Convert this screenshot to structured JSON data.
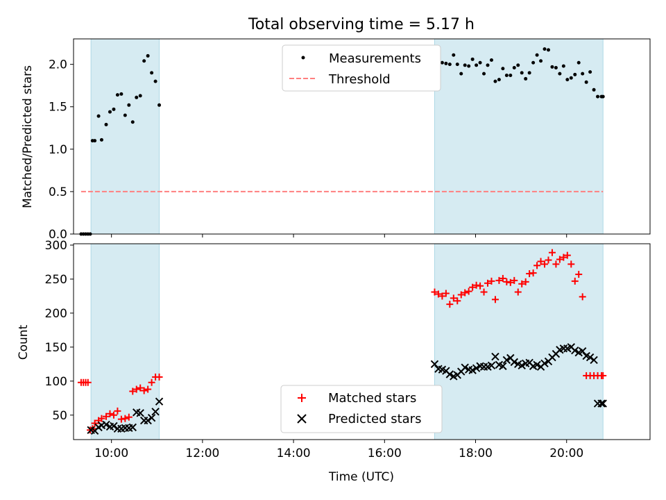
{
  "title": "Total observing time = 5.17 h",
  "xlabel": "Time (UTC)",
  "x_ticks": [
    "10:00",
    "12:00",
    "14:00",
    "16:00",
    "18:00",
    "20:00"
  ],
  "colors": {
    "shade": "#add8e6",
    "measurements": "#000000",
    "threshold": "#ff7f7f",
    "matched": "#ff0000",
    "predicted": "#000000"
  },
  "chart_data": [
    {
      "type": "scatter",
      "ylabel": "Matched/Predicted stars",
      "xlim": [
        "09:10",
        "21:50"
      ],
      "ylim": [
        0,
        2.3
      ],
      "y_ticks": [
        "0.0",
        "0.5",
        "1.0",
        "1.5",
        "2.0"
      ],
      "shaded_spans": [
        [
          "09:33",
          "11:03"
        ],
        [
          "17:06",
          "20:48"
        ]
      ],
      "legend": {
        "location": "upper center",
        "entries": [
          "Measurements",
          "Threshold"
        ]
      },
      "threshold": {
        "name": "Threshold",
        "y": 0.5,
        "x_range": [
          "09:20",
          "20:48"
        ],
        "style": "dashed"
      },
      "series": [
        {
          "name": "Measurements",
          "marker": "dot",
          "x": [
            "09:20",
            "09:23",
            "09:26",
            "09:29",
            "09:32",
            "09:35",
            "09:38",
            "09:43",
            "09:47",
            "09:53",
            "09:58",
            "10:03",
            "10:08",
            "10:13",
            "10:18",
            "10:23",
            "10:28",
            "10:33",
            "10:38",
            "10:43",
            "10:48",
            "10:53",
            "10:58",
            "11:03",
            "17:06",
            "17:11",
            "17:16",
            "17:21",
            "17:26",
            "17:31",
            "17:36",
            "17:41",
            "17:46",
            "17:51",
            "17:56",
            "18:01",
            "18:06",
            "18:11",
            "18:16",
            "18:21",
            "18:26",
            "18:31",
            "18:36",
            "18:41",
            "18:46",
            "18:51",
            "18:56",
            "19:01",
            "19:06",
            "19:11",
            "19:16",
            "19:21",
            "19:26",
            "19:31",
            "19:36",
            "19:41",
            "19:46",
            "19:51",
            "19:56",
            "20:01",
            "20:06",
            "20:11",
            "20:16",
            "20:21",
            "20:26",
            "20:31",
            "20:36",
            "20:41",
            "20:46",
            "20:48"
          ],
          "y": [
            0,
            0,
            0,
            0,
            0,
            1.1,
            1.1,
            1.39,
            1.11,
            1.29,
            1.44,
            1.47,
            1.64,
            1.65,
            1.4,
            1.52,
            1.32,
            1.61,
            1.63,
            2.04,
            2.1,
            1.9,
            1.8,
            1.52,
            1.86,
            1.93,
            2.02,
            2.01,
            2.0,
            2.11,
            2.0,
            1.89,
            1.99,
            1.98,
            2.06,
            1.99,
            2.02,
            1.89,
            1.99,
            2.05,
            1.8,
            1.82,
            1.95,
            1.87,
            1.87,
            1.96,
            1.99,
            1.9,
            1.83,
            1.9,
            2.02,
            2.11,
            2.04,
            2.18,
            2.17,
            1.97,
            1.96,
            1.89,
            1.98,
            1.82,
            1.84,
            1.88,
            2.02,
            1.89,
            1.79,
            1.91,
            1.7,
            1.62,
            1.62,
            1.62
          ]
        }
      ]
    },
    {
      "type": "scatter",
      "ylabel": "Count",
      "xlim": [
        "09:10",
        "21:50"
      ],
      "ylim": [
        14,
        302
      ],
      "y_ticks": [
        "50",
        "100",
        "150",
        "200",
        "250",
        "300"
      ],
      "shaded_spans": [
        [
          "09:33",
          "11:03"
        ],
        [
          "17:06",
          "20:48"
        ]
      ],
      "legend": {
        "location": "lower center",
        "entries": [
          "Matched stars",
          "Predicted stars"
        ]
      },
      "series": [
        {
          "name": "Matched stars",
          "marker": "plus",
          "x": [
            "09:20",
            "09:23",
            "09:26",
            "09:29",
            "09:32",
            "09:35",
            "09:38",
            "09:43",
            "09:47",
            "09:53",
            "09:58",
            "10:03",
            "10:08",
            "10:13",
            "10:18",
            "10:23",
            "10:28",
            "10:33",
            "10:38",
            "10:43",
            "10:48",
            "10:53",
            "10:58",
            "11:03",
            "17:06",
            "17:11",
            "17:16",
            "17:21",
            "17:26",
            "17:31",
            "17:36",
            "17:41",
            "17:46",
            "17:51",
            "17:56",
            "18:01",
            "18:06",
            "18:11",
            "18:16",
            "18:21",
            "18:26",
            "18:31",
            "18:36",
            "18:41",
            "18:46",
            "18:51",
            "18:56",
            "19:01",
            "19:06",
            "19:11",
            "19:16",
            "19:21",
            "19:26",
            "19:31",
            "19:36",
            "19:41",
            "19:46",
            "19:51",
            "19:56",
            "20:01",
            "20:06",
            "20:11",
            "20:16",
            "20:21",
            "20:26",
            "20:31",
            "20:36",
            "20:41",
            "20:46",
            "20:48"
          ],
          "y": [
            98,
            98,
            98,
            98,
            28,
            30,
            38,
            42,
            45,
            48,
            52,
            50,
            56,
            44,
            45,
            47,
            85,
            88,
            90,
            86,
            88,
            98,
            106,
            106,
            231,
            228,
            225,
            229,
            213,
            222,
            218,
            227,
            230,
            232,
            238,
            241,
            240,
            231,
            244,
            247,
            220,
            248,
            251,
            246,
            245,
            248,
            231,
            243,
            246,
            258,
            259,
            270,
            276,
            272,
            278,
            289,
            272,
            279,
            282,
            285,
            272,
            247,
            257,
            224,
            108,
            108,
            108,
            108,
            108,
            108
          ]
        },
        {
          "name": "Predicted stars",
          "marker": "x",
          "x": [
            "09:33",
            "09:38",
            "09:43",
            "09:47",
            "09:53",
            "09:58",
            "10:03",
            "10:08",
            "10:13",
            "10:18",
            "10:23",
            "10:28",
            "10:33",
            "10:38",
            "10:43",
            "10:48",
            "10:53",
            "10:58",
            "11:03",
            "17:06",
            "17:11",
            "17:16",
            "17:21",
            "17:26",
            "17:31",
            "17:36",
            "17:41",
            "17:46",
            "17:51",
            "17:56",
            "18:01",
            "18:06",
            "18:11",
            "18:16",
            "18:21",
            "18:26",
            "18:31",
            "18:36",
            "18:41",
            "18:46",
            "18:51",
            "18:56",
            "19:01",
            "19:06",
            "19:11",
            "19:16",
            "19:21",
            "19:26",
            "19:31",
            "19:36",
            "19:41",
            "19:46",
            "19:51",
            "19:56",
            "20:01",
            "20:06",
            "20:11",
            "20:16",
            "20:21",
            "20:26",
            "20:31",
            "20:36",
            "20:41",
            "20:46",
            "20:48"
          ],
          "y": [
            28,
            27,
            32,
            35,
            36,
            33,
            34,
            30,
            30,
            31,
            31,
            32,
            54,
            53,
            42,
            42,
            46,
            55,
            70,
            125,
            118,
            117,
            115,
            110,
            107,
            109,
            114,
            120,
            117,
            116,
            119,
            122,
            121,
            121,
            123,
            136,
            124,
            122,
            131,
            134,
            128,
            125,
            123,
            126,
            127,
            122,
            124,
            121,
            126,
            129,
            135,
            140,
            146,
            148,
            148,
            150,
            145,
            142,
            144,
            137,
            135,
            131,
            67,
            67,
            67
          ]
        }
      ]
    }
  ]
}
